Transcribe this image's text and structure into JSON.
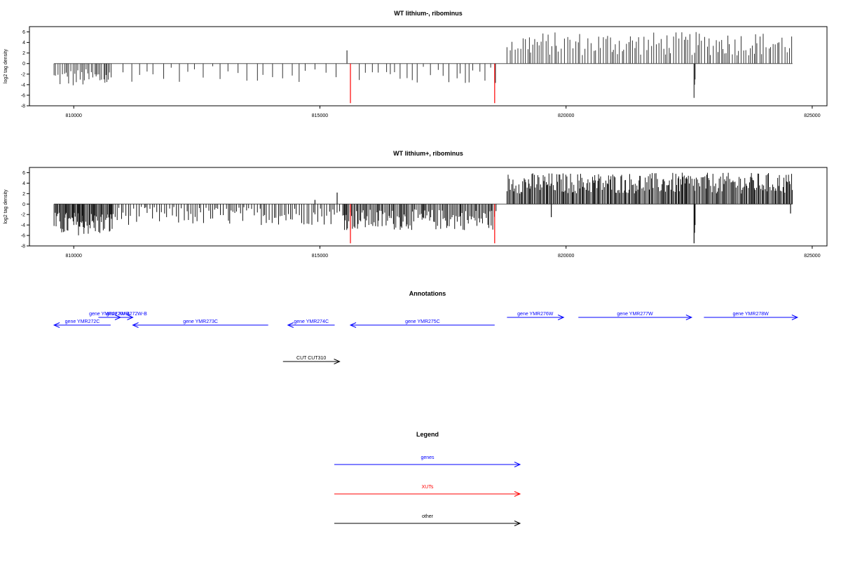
{
  "chart_data": [
    {
      "type": "bar",
      "title": "WT lithium-, ribominus",
      "ylabel": "log2 tag density",
      "xlim": [
        809100,
        825300
      ],
      "ylim": [
        -8,
        7
      ],
      "x_ticks": [
        810000,
        815000,
        820000,
        825000
      ],
      "x_tick_labels": [
        "810000",
        "815000",
        "820000",
        "825000"
      ],
      "y_ticks": [
        -8,
        -6,
        -4,
        -2,
        0,
        2,
        4,
        6
      ],
      "y_tick_labels": [
        "-8",
        "-6",
        "-4",
        "-2",
        "0",
        "2",
        "4",
        "6"
      ],
      "baseline": {
        "from": 809600,
        "to": 824600
      },
      "series": [
        {
          "color": "#333333",
          "segments": [
            {
              "from": 809600,
              "to": 810800,
              "min": -4.5,
              "max": -1.0,
              "step": 35
            },
            {
              "from": 811000,
              "to": 815400,
              "min": -3.5,
              "max": -0.5,
              "step": 150
            },
            {
              "from": 815800,
              "to": 818600,
              "min": -4.0,
              "max": -0.5,
              "step": 120
            },
            {
              "from": 818800,
              "to": 824600,
              "min": 1.5,
              "max": 6.0,
              "step": 45
            }
          ],
          "bars": [
            {
              "x": 815550,
              "value": 2.5
            },
            {
              "x": 822600,
              "value": -6.5
            },
            {
              "x": 822610,
              "value": -4.0
            },
            {
              "x": 822620,
              "value": -3.0
            }
          ]
        },
        {
          "color": "#ff0000",
          "bars": [
            {
              "x": 815620,
              "value": -7.5
            },
            {
              "x": 818550,
              "value": -7.5
            }
          ]
        }
      ]
    },
    {
      "type": "bar",
      "title": "WT lithium+, ribominus",
      "ylabel": "log2 tag density",
      "xlim": [
        809100,
        825300
      ],
      "ylim": [
        -8,
        7
      ],
      "x_ticks": [
        810000,
        815000,
        820000,
        825000
      ],
      "x_tick_labels": [
        "810000",
        "815000",
        "820000",
        "825000"
      ],
      "y_ticks": [
        -8,
        -6,
        -4,
        -2,
        0,
        2,
        4,
        6
      ],
      "y_tick_labels": [
        "-8",
        "-6",
        "-4",
        "-2",
        "0",
        "2",
        "4",
        "6"
      ],
      "baseline": {
        "from": 809600,
        "to": 824600
      },
      "series": [
        {
          "color": "#111111",
          "segments": [
            {
              "from": 809600,
              "to": 810800,
              "min": -6.0,
              "max": -1.5,
              "step": 18
            },
            {
              "from": 810800,
              "to": 815500,
              "min": -4.0,
              "max": -0.5,
              "step": 45
            },
            {
              "from": 815500,
              "to": 818600,
              "min": -5.0,
              "max": -1.0,
              "step": 25
            },
            {
              "from": 818800,
              "to": 824600,
              "min": 2.0,
              "max": 6.0,
              "step": 22
            }
          ],
          "bars": [
            {
              "x": 815350,
              "value": 2.2
            },
            {
              "x": 814900,
              "value": 0.8
            },
            {
              "x": 822600,
              "value": -7.5
            },
            {
              "x": 822610,
              "value": -5.5
            },
            {
              "x": 822620,
              "value": -4.0
            },
            {
              "x": 819700,
              "value": -2.5
            },
            {
              "x": 824560,
              "value": -1.8
            }
          ]
        },
        {
          "color": "#ff0000",
          "bars": [
            {
              "x": 815620,
              "value": -7.5
            },
            {
              "x": 818550,
              "value": -7.5
            }
          ]
        }
      ]
    }
  ],
  "annotations": {
    "title": "Annotations",
    "features": [
      {
        "label": "gene YMR272C",
        "start": 809600,
        "end": 810750,
        "strand": "-",
        "row": 0,
        "color": "#0000ff"
      },
      {
        "label": "gene YMR272W-A",
        "start": 810500,
        "end": 810950,
        "strand": "+",
        "row": 1,
        "color": "#0000ff"
      },
      {
        "label": "gene YMR272W-B",
        "start": 810950,
        "end": 811200,
        "strand": "+",
        "row": 1,
        "color": "#0000ff"
      },
      {
        "label": "gene YMR273C",
        "start": 811200,
        "end": 813950,
        "strand": "-",
        "row": 0,
        "color": "#0000ff"
      },
      {
        "label": "gene YMR274C",
        "start": 814350,
        "end": 815300,
        "strand": "-",
        "row": 0,
        "color": "#0000ff"
      },
      {
        "label": "gene YMR275C",
        "start": 815620,
        "end": 818550,
        "strand": "-",
        "row": 0,
        "color": "#0000ff"
      },
      {
        "label": "gene YMR276W",
        "start": 818800,
        "end": 819950,
        "strand": "+",
        "row": 1,
        "color": "#0000ff"
      },
      {
        "label": "gene YMR277W",
        "start": 820250,
        "end": 822550,
        "strand": "+",
        "row": 1,
        "color": "#0000ff"
      },
      {
        "label": "gene YMR278W",
        "start": 822800,
        "end": 824700,
        "strand": "+",
        "row": 1,
        "color": "#0000ff"
      },
      {
        "label": "CUT CUT310",
        "start": 814250,
        "end": 815400,
        "strand": "+",
        "row": 3,
        "color": "#000000"
      }
    ]
  },
  "legend": {
    "title": "Legend",
    "items": [
      {
        "label": "genes",
        "color": "#0000ff"
      },
      {
        "label": "XUTs",
        "color": "#ff0000"
      },
      {
        "label": "other",
        "color": "#000000"
      }
    ]
  }
}
